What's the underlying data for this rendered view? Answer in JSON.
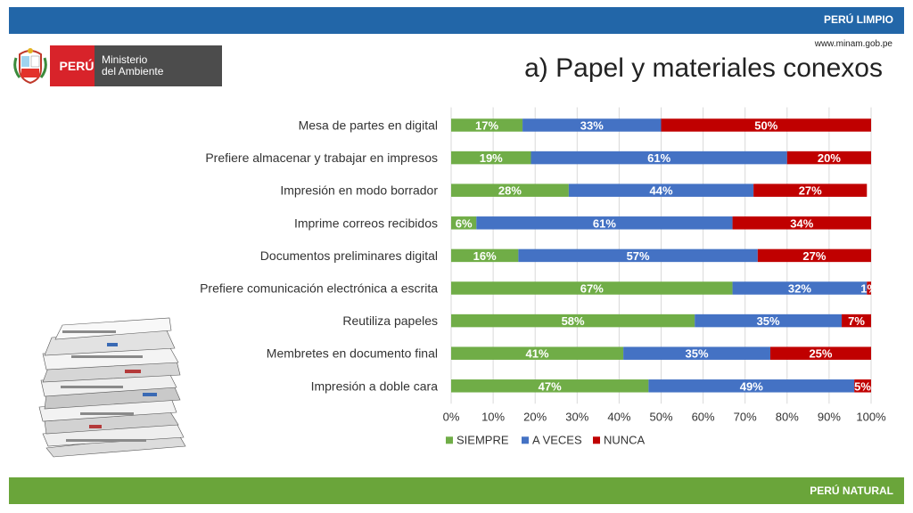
{
  "header": {
    "brand": "PERÚ LIMPIO",
    "url": "www.minam.gob.pe"
  },
  "footer": {
    "brand": "PERÚ NATURAL"
  },
  "logo": {
    "country": "PERÚ",
    "ministry_line1": "Ministerio",
    "ministry_line2": "del Ambiente"
  },
  "page_title": "a) Papel y materiales conexos",
  "colors": {
    "header_bar": "#2266a8",
    "footer_bar": "#6aa53a",
    "siempre": "#70ad47",
    "a_veces": "#4472c4",
    "nunca": "#c00000"
  },
  "chart_data": {
    "type": "bar",
    "orientation": "horizontal",
    "stacked": true,
    "categories": [
      "Mesa de partes en digital",
      "Prefiere almacenar y trabajar en impresos",
      "Impresión en modo borrador",
      "Imprime correos recibidos",
      "Documentos preliminares digital",
      "Prefiere comunicación electrónica a escrita",
      "Reutiliza papeles",
      "Membretes en documento final",
      "Impresión a doble cara"
    ],
    "series": [
      {
        "name": "SIEMPRE",
        "color": "#70ad47",
        "values": [
          17,
          19,
          28,
          6,
          16,
          67,
          58,
          41,
          47
        ],
        "labels": [
          "17%",
          "19%",
          "28%",
          "6%",
          "16%",
          "67%",
          "58%",
          "41%",
          "47%"
        ]
      },
      {
        "name": "A VECES",
        "color": "#4472c4",
        "values": [
          33,
          61,
          44,
          61,
          57,
          32,
          35,
          35,
          49
        ],
        "labels": [
          "33%",
          "61%",
          "44%",
          "61%",
          "57%",
          "32%",
          "35%",
          "35%",
          "49%"
        ]
      },
      {
        "name": "NUNCA",
        "color": "#c00000",
        "values": [
          50,
          20,
          27,
          34,
          27,
          1,
          7,
          25,
          5
        ],
        "labels": [
          "50%",
          "20%",
          "27%",
          "34%",
          "27%",
          "1%",
          "7%",
          "25%",
          "5%"
        ]
      }
    ],
    "xlim": [
      0,
      100
    ],
    "xticks": [
      "0%",
      "10%",
      "20%",
      "30%",
      "40%",
      "50%",
      "60%",
      "70%",
      "80%",
      "90%",
      "100%"
    ],
    "grid": "vertical",
    "legend_position": "bottom"
  }
}
